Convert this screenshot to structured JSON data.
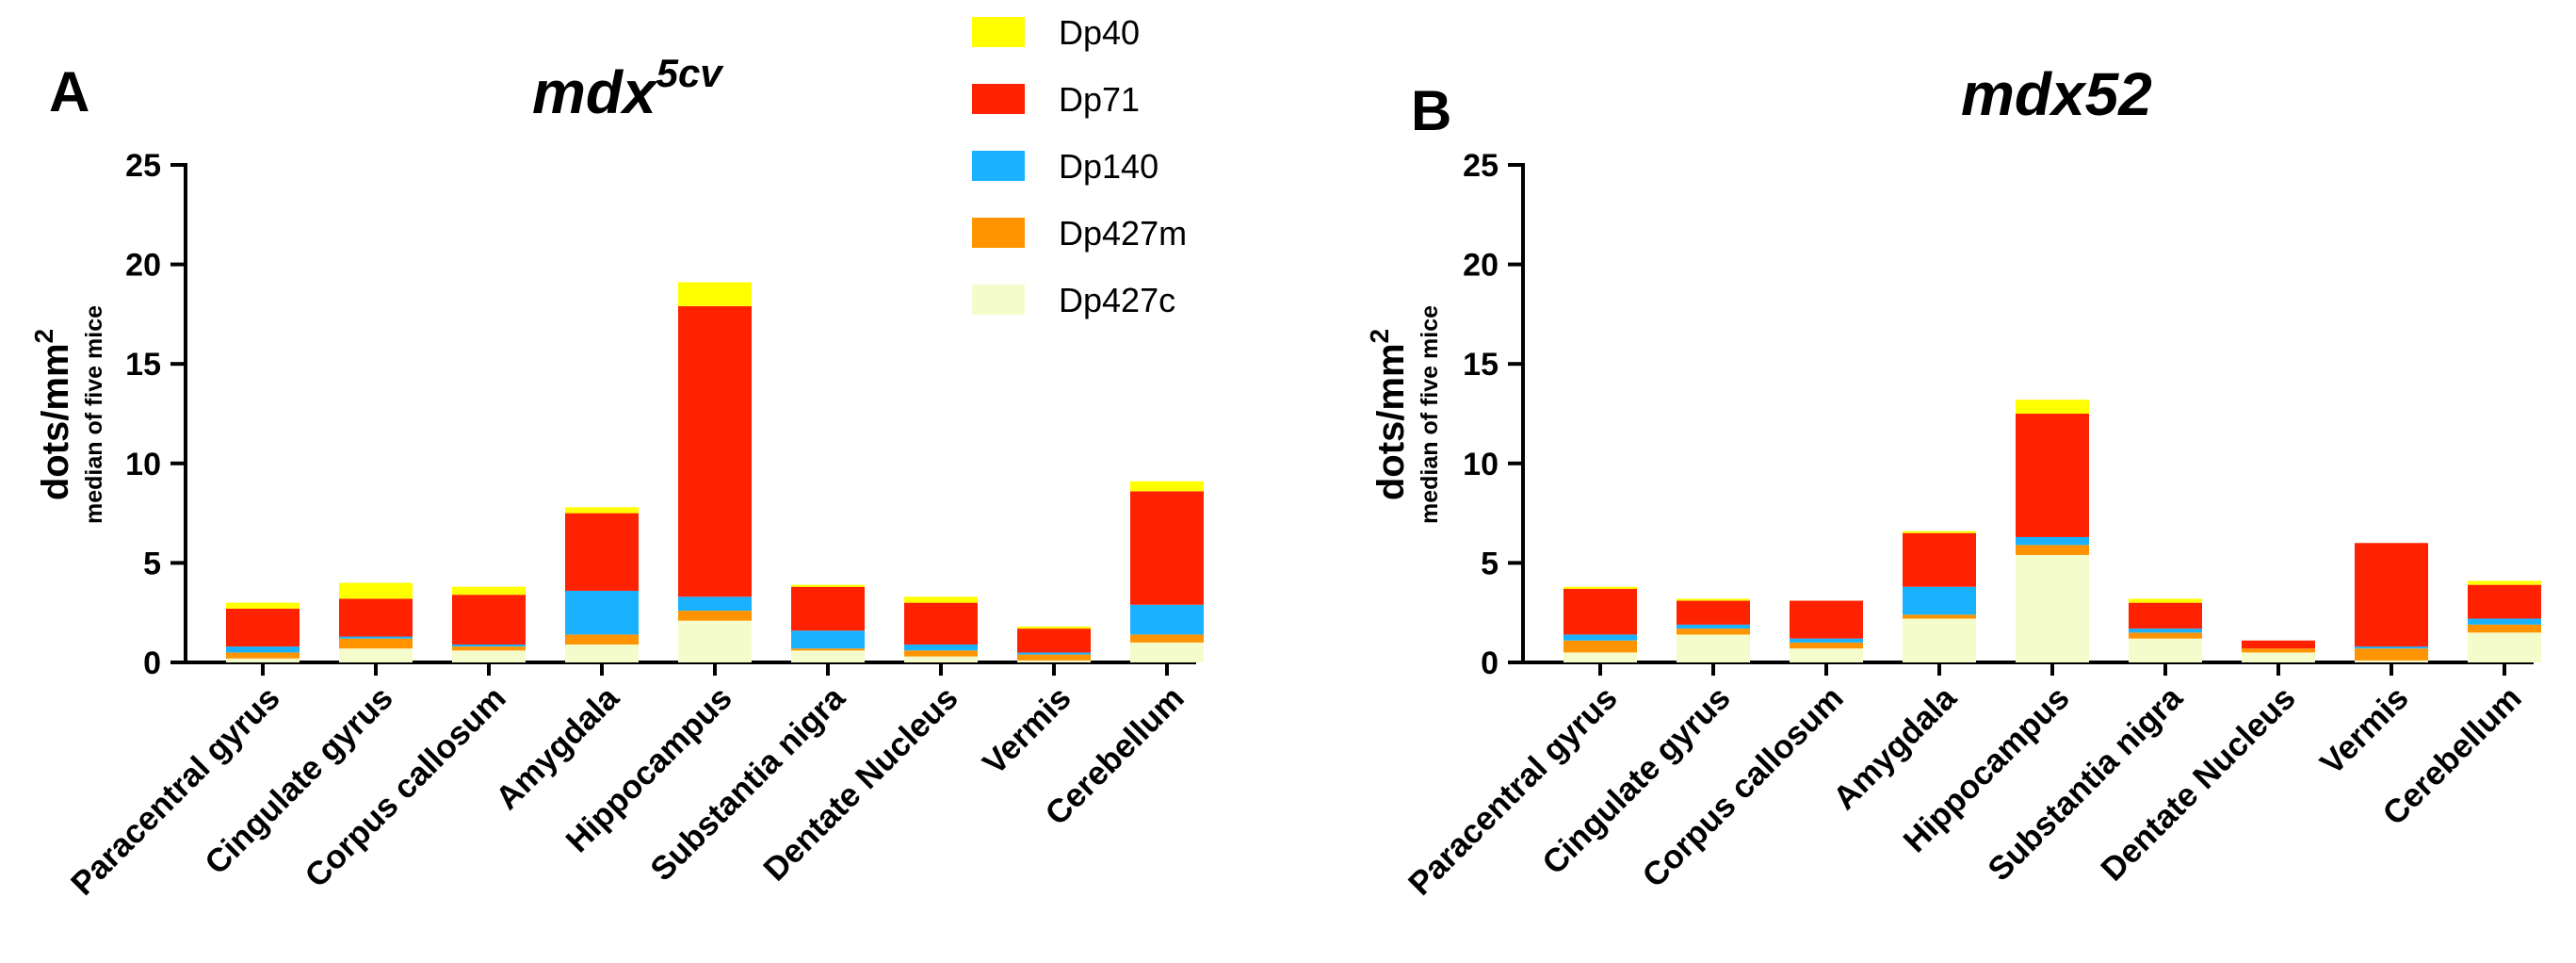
{
  "chart_data": [
    {
      "type": "bar",
      "stacked": true,
      "panel_letter": "A",
      "title_main": "mdx",
      "title_sup": "5cv",
      "ylabel_main": "dots/mm",
      "ylabel_sup": "2",
      "ylabel_sub": "median of five mice",
      "ylim": [
        0,
        25
      ],
      "yticks": [
        "0",
        "5",
        "10",
        "15",
        "20",
        "25"
      ],
      "categories": [
        "Paracentral gyrus",
        "Cingulate gyrus",
        "Corpus callosum",
        "Amygdala",
        "Hippocampus",
        "Substantia nigra",
        "Dentate Nucleus",
        "Vermis",
        "Cerebellum"
      ],
      "series": [
        {
          "name": "Dp427c",
          "values": [
            0.2,
            0.7,
            0.6,
            0.9,
            2.1,
            0.6,
            0.3,
            0.1,
            1.0
          ]
        },
        {
          "name": "Dp427m",
          "values": [
            0.3,
            0.5,
            0.2,
            0.5,
            0.5,
            0.1,
            0.3,
            0.3,
            0.4
          ]
        },
        {
          "name": "Dp140",
          "values": [
            0.3,
            0.1,
            0.1,
            2.2,
            0.7,
            0.9,
            0.3,
            0.1,
            1.5
          ]
        },
        {
          "name": "Dp71",
          "values": [
            1.9,
            1.9,
            2.5,
            3.9,
            14.6,
            2.2,
            2.1,
            1.2,
            5.7
          ]
        },
        {
          "name": "Dp40",
          "values": [
            0.3,
            0.8,
            0.4,
            0.3,
            1.2,
            0.1,
            0.3,
            0.1,
            0.5
          ]
        }
      ]
    },
    {
      "type": "bar",
      "stacked": true,
      "panel_letter": "B",
      "title_main": "mdx52",
      "title_sup": "",
      "ylabel_main": "dots/mm",
      "ylabel_sup": "2",
      "ylabel_sub": "median of five mice",
      "ylim": [
        0,
        25
      ],
      "yticks": [
        "0",
        "5",
        "10",
        "15",
        "20",
        "25"
      ],
      "categories": [
        "Paracentral gyrus",
        "Cingulate gyrus",
        "Corpus callosum",
        "Amygdala",
        "Hippocampus",
        "Substantia nigra",
        "Dentate Nucleus",
        "Vermis",
        "Cerebellum"
      ],
      "series": [
        {
          "name": "Dp427c",
          "values": [
            0.5,
            1.4,
            0.7,
            2.2,
            5.4,
            1.2,
            0.5,
            0.1,
            1.5
          ]
        },
        {
          "name": "Dp427m",
          "values": [
            0.6,
            0.3,
            0.3,
            0.2,
            0.5,
            0.3,
            0.2,
            0.6,
            0.4
          ]
        },
        {
          "name": "Dp140",
          "values": [
            0.3,
            0.2,
            0.2,
            1.4,
            0.4,
            0.2,
            0.0,
            0.1,
            0.3
          ]
        },
        {
          "name": "Dp71",
          "values": [
            2.3,
            1.2,
            1.9,
            2.7,
            6.2,
            1.3,
            0.4,
            5.2,
            1.7
          ]
        },
        {
          "name": "Dp40",
          "values": [
            0.1,
            0.1,
            0.0,
            0.1,
            0.7,
            0.2,
            0.0,
            0.0,
            0.2
          ]
        }
      ]
    }
  ],
  "legend": [
    {
      "name": "Dp40",
      "color": "#ffff00"
    },
    {
      "name": "Dp71",
      "color": "#ff2200"
    },
    {
      "name": "Dp140",
      "color": "#1ab2ff"
    },
    {
      "name": "Dp427m",
      "color": "#ff9400"
    },
    {
      "name": "Dp427c",
      "color": "#f5fccc"
    }
  ],
  "colors": {
    "Dp427c": "#f5fccc",
    "Dp427m": "#ff9400",
    "Dp140": "#1ab2ff",
    "Dp71": "#ff2200",
    "Dp40": "#ffff00"
  }
}
